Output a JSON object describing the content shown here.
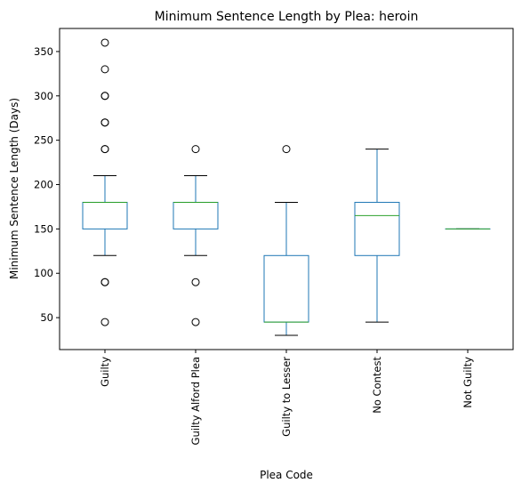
{
  "chart_data": {
    "type": "box",
    "title": "Minimum Sentence Length by Plea: heroin",
    "xlabel": "Plea Code",
    "ylabel": "Minimum Sentence Length (Days)",
    "ylim": [
      14,
      376
    ],
    "yticks": [
      50,
      100,
      150,
      200,
      250,
      300,
      350
    ],
    "grid": false,
    "categories": [
      "Guilty",
      "Guilty Alford Plea",
      "Guilty to Lesser",
      "No Contest",
      "Not Guilty"
    ],
    "boxes": [
      {
        "q1": 150,
        "median": 180,
        "q3": 180,
        "whisker_low": 120,
        "whisker_high": 210,
        "outliers": [
          45,
          90,
          90,
          240,
          240,
          270,
          270,
          300,
          300,
          330,
          360
        ]
      },
      {
        "q1": 150,
        "median": 180,
        "q3": 180,
        "whisker_low": 120,
        "whisker_high": 210,
        "outliers": [
          45,
          90,
          240
        ]
      },
      {
        "q1": 45,
        "median": 45,
        "q3": 120,
        "whisker_low": 30,
        "whisker_high": 180,
        "outliers": [
          240
        ]
      },
      {
        "q1": 120,
        "median": 165,
        "q3": 180,
        "whisker_low": 45,
        "whisker_high": 240,
        "outliers": []
      },
      {
        "q1": 150,
        "median": 150,
        "q3": 150,
        "whisker_low": 150,
        "whisker_high": 150,
        "outliers": []
      }
    ],
    "colors": {
      "box": "#1f77b4",
      "median": "#2ca02c",
      "whisker_cap": "#000000",
      "outlier": "#000000"
    }
  }
}
